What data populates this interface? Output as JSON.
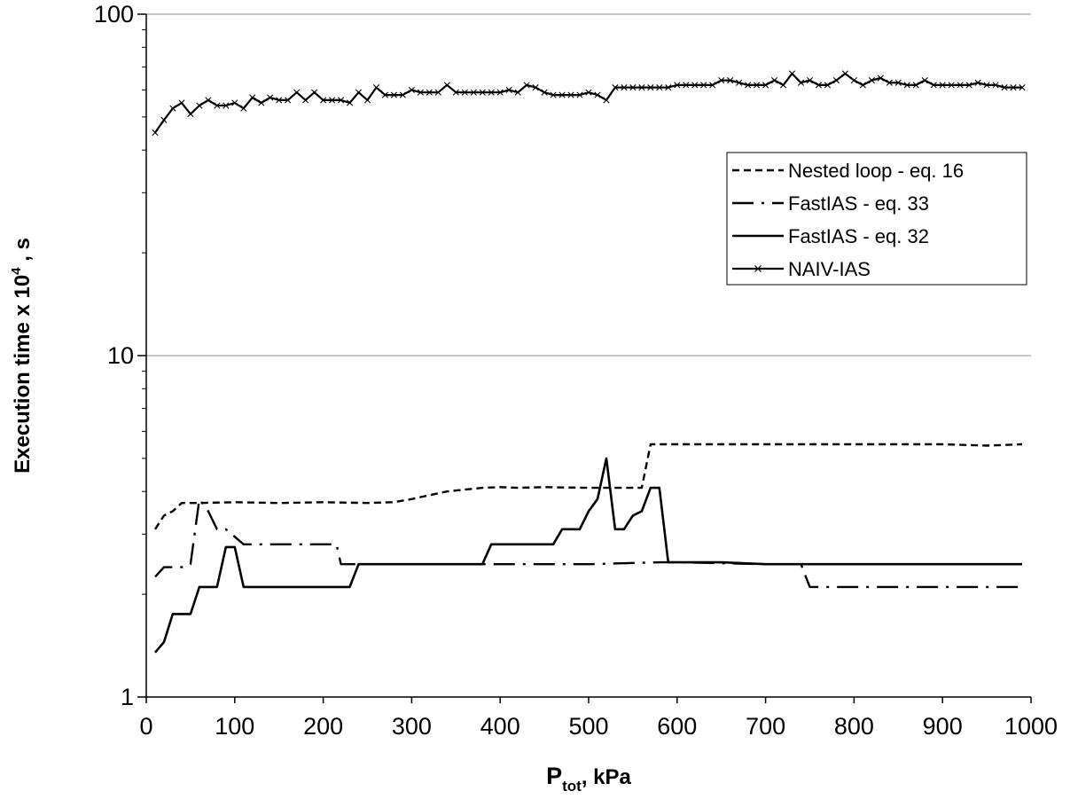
{
  "chart_data": {
    "type": "line",
    "title": "",
    "xlabel": "P",
    "xlabel_sub": "tot",
    "xlabel_suffix": ", kPa",
    "ylabel": "Execution time x 10",
    "ylabel_sup": "4",
    "ylabel_suffix": " , s",
    "xlim": [
      0,
      1000
    ],
    "ylim": [
      1,
      100
    ],
    "yscale": "log",
    "grid": "horizontal major",
    "legend_position": "right",
    "x_ticks": [
      "0",
      "100",
      "200",
      "300",
      "400",
      "500",
      "600",
      "700",
      "800",
      "900",
      "1000"
    ],
    "y_ticks": [
      "1",
      "10",
      "100"
    ],
    "series": [
      {
        "name": "Nested loop - eq. 16",
        "style": "dashed",
        "x": [
          10,
          20,
          30,
          40,
          50,
          60,
          100,
          150,
          200,
          250,
          280,
          300,
          320,
          340,
          360,
          380,
          400,
          420,
          450,
          500,
          560,
          570,
          600,
          700,
          800,
          900,
          950,
          990
        ],
        "y": [
          3.1,
          3.4,
          3.5,
          3.7,
          3.7,
          3.7,
          3.72,
          3.7,
          3.72,
          3.7,
          3.72,
          3.8,
          3.9,
          4.0,
          4.05,
          4.1,
          4.12,
          4.1,
          4.12,
          4.1,
          4.1,
          5.5,
          5.5,
          5.5,
          5.5,
          5.5,
          5.45,
          5.5
        ]
      },
      {
        "name": "FastIAS - eq. 33",
        "style": "dash-dot",
        "x": [
          10,
          20,
          30,
          40,
          50,
          60,
          70,
          80,
          90,
          110,
          130,
          150,
          200,
          215,
          220,
          250,
          300,
          400,
          500,
          580,
          600,
          700,
          740,
          750,
          800,
          900,
          990
        ],
        "y": [
          2.25,
          2.4,
          2.4,
          2.4,
          2.45,
          3.8,
          3.5,
          3.1,
          3.1,
          2.8,
          2.8,
          2.8,
          2.8,
          2.8,
          2.45,
          2.45,
          2.45,
          2.45,
          2.45,
          2.48,
          2.48,
          2.45,
          2.45,
          2.1,
          2.1,
          2.1,
          2.1
        ]
      },
      {
        "name": "FastIAS - eq. 32",
        "style": "solid",
        "x": [
          10,
          20,
          30,
          40,
          50,
          60,
          70,
          80,
          90,
          100,
          110,
          120,
          130,
          140,
          150,
          200,
          230,
          240,
          250,
          300,
          350,
          380,
          390,
          400,
          450,
          460,
          470,
          480,
          490,
          500,
          510,
          520,
          530,
          540,
          550,
          560,
          570,
          580,
          590,
          600,
          650,
          700,
          750,
          800,
          900,
          990
        ],
        "y": [
          1.35,
          1.45,
          1.75,
          1.75,
          1.75,
          2.1,
          2.1,
          2.1,
          2.75,
          2.75,
          2.1,
          2.1,
          2.1,
          2.1,
          2.1,
          2.1,
          2.1,
          2.45,
          2.45,
          2.45,
          2.45,
          2.45,
          2.8,
          2.8,
          2.8,
          2.8,
          3.1,
          3.1,
          3.1,
          3.5,
          3.8,
          5.0,
          3.1,
          3.1,
          3.4,
          3.5,
          4.1,
          4.1,
          2.48,
          2.48,
          2.48,
          2.45,
          2.45,
          2.45,
          2.45,
          2.45
        ]
      },
      {
        "name": "NAIV-IAS",
        "style": "solid-x-markers",
        "x": [
          10,
          20,
          30,
          40,
          50,
          60,
          70,
          80,
          90,
          100,
          110,
          120,
          130,
          140,
          150,
          160,
          170,
          180,
          190,
          200,
          210,
          220,
          230,
          240,
          250,
          260,
          270,
          280,
          290,
          300,
          310,
          320,
          330,
          340,
          350,
          360,
          370,
          380,
          390,
          400,
          410,
          420,
          430,
          440,
          450,
          460,
          470,
          480,
          490,
          500,
          510,
          520,
          530,
          540,
          550,
          560,
          570,
          580,
          590,
          600,
          610,
          620,
          630,
          640,
          650,
          660,
          670,
          680,
          690,
          700,
          710,
          720,
          730,
          740,
          750,
          760,
          770,
          780,
          790,
          800,
          810,
          820,
          830,
          840,
          850,
          860,
          870,
          880,
          890,
          900,
          910,
          920,
          930,
          940,
          950,
          960,
          970,
          980,
          990
        ],
        "y": [
          45,
          49,
          53,
          55,
          51,
          54,
          56,
          54,
          54,
          55,
          53,
          57,
          55,
          57,
          56,
          56,
          59,
          56,
          59,
          56,
          56,
          56,
          55,
          59,
          56,
          61,
          58,
          58,
          58,
          60,
          59,
          59,
          59,
          62,
          59,
          59,
          59,
          59,
          59,
          59,
          60,
          59,
          62,
          61,
          59,
          58,
          58,
          58,
          58,
          59,
          58,
          56,
          61,
          61,
          61,
          61,
          61,
          61,
          61,
          62,
          62,
          62,
          62,
          62,
          64,
          64,
          63,
          62,
          62,
          62,
          64,
          62,
          67,
          63,
          64,
          62,
          62,
          64,
          67,
          64,
          62,
          64,
          65,
          63,
          63,
          62,
          62,
          64,
          62,
          62,
          62,
          62,
          62,
          63,
          62,
          62,
          61,
          61,
          61
        ]
      }
    ]
  }
}
